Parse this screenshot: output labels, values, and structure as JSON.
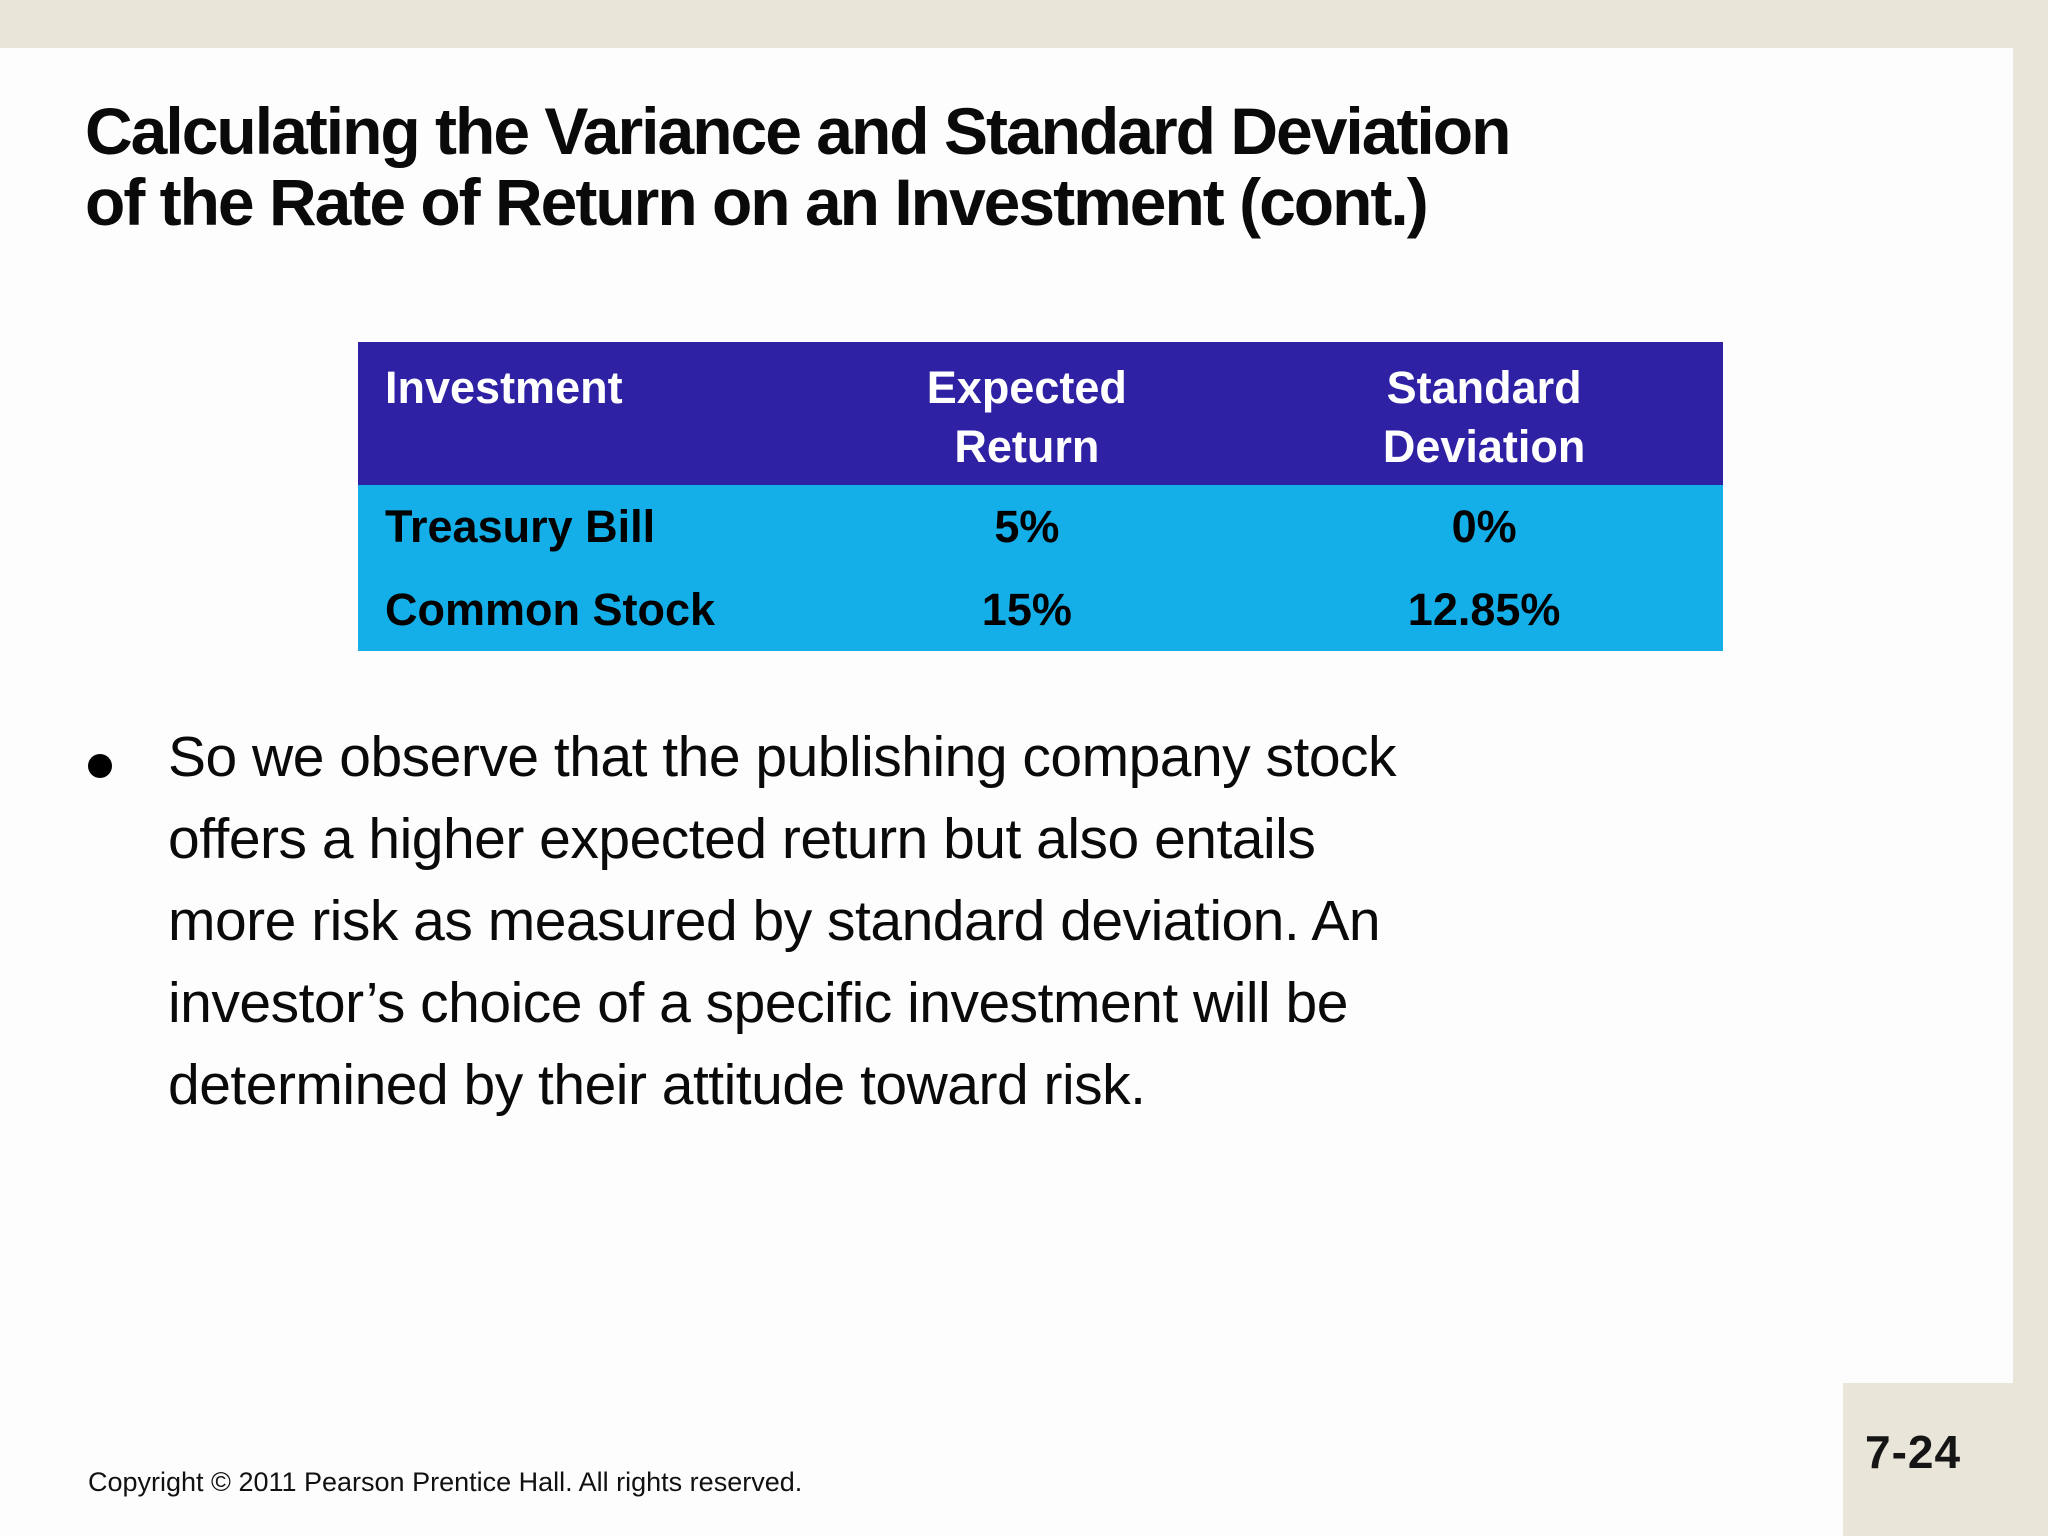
{
  "slide": {
    "title_line1": "Calculating the Variance and Standard Deviation",
    "title_line2": "of the Rate of Return on an Investment (cont.)"
  },
  "table": {
    "header": {
      "col1": "Investment",
      "col2_line1": "Expected",
      "col2_line2": "Return",
      "col3_line1": "Standard",
      "col3_line2": "Deviation"
    },
    "rows": [
      {
        "investment": "Treasury Bill",
        "expected_return": "5%",
        "std_dev": "0%"
      },
      {
        "investment": "Common Stock",
        "expected_return": "15%",
        "std_dev": "12.85%"
      }
    ],
    "colors": {
      "header_bg": "#2E21A4",
      "header_text": "#FFFFFF",
      "row_bg": "#14AEE8",
      "row_text": "#000000"
    }
  },
  "bullet": {
    "lines": [
      "So we observe that the publishing company stock",
      "offers a higher expected return but also entails",
      "more risk as measured by standard deviation. An",
      "investor’s choice of a specific investment will be",
      "determined by their attitude toward risk."
    ]
  },
  "footer": {
    "copyright": "Copyright © 2011 Pearson Prentice Hall. All rights reserved.",
    "page_number": "7-24"
  },
  "colors": {
    "frame": "#EAE5D9",
    "slide_bg": "#FDFDFD"
  }
}
